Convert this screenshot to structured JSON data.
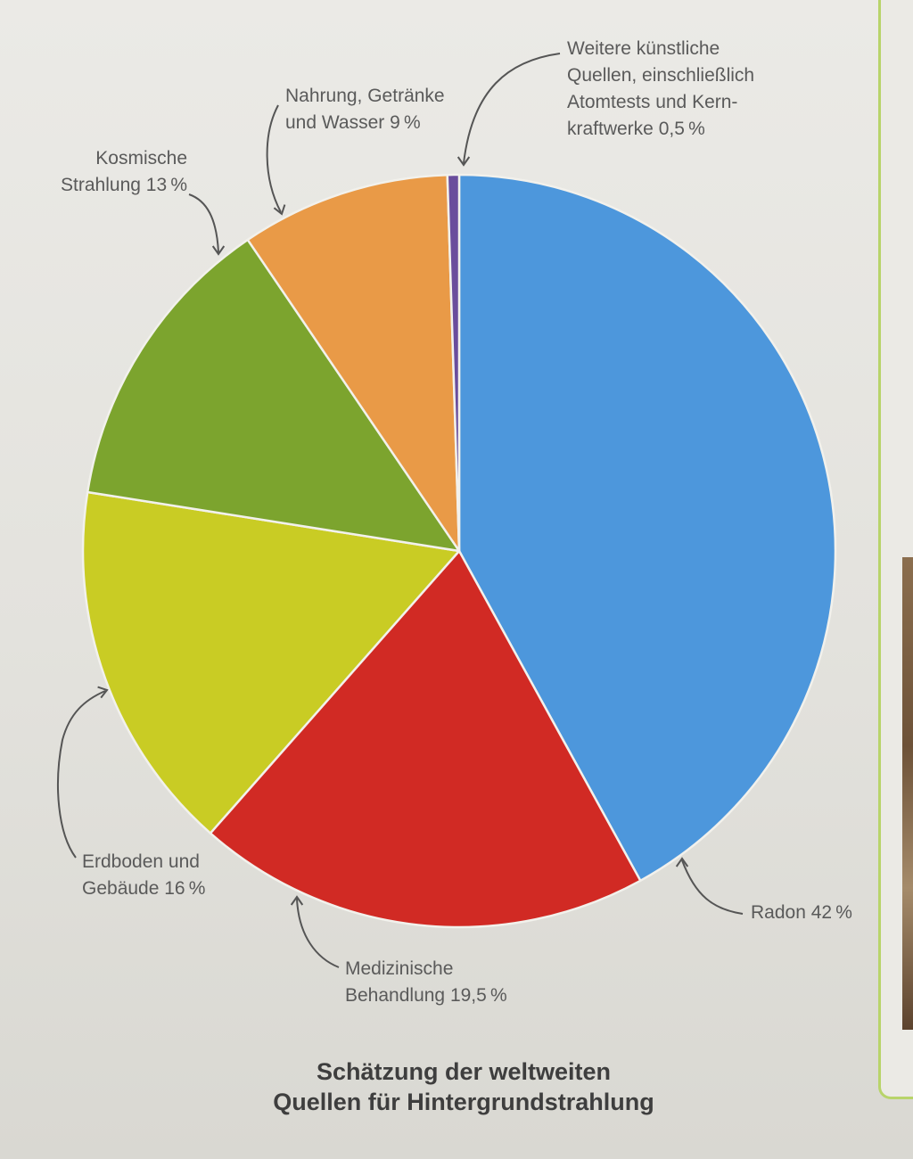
{
  "chart_data": {
    "type": "pie",
    "title_lines": [
      "Schätzung der weltweiten",
      "Quellen für Hintergrundstrahlung"
    ],
    "slices": [
      {
        "name": "Radon",
        "value": 42,
        "label_lines": [
          "Radon 42 %"
        ],
        "color": "#4d97dc"
      },
      {
        "name": "Medizinische Behandlung",
        "value": 19.5,
        "label_lines": [
          "Medizinische",
          "Behandlung 19,5 %"
        ],
        "color": "#d12a24"
      },
      {
        "name": "Erdboden und Gebäude",
        "value": 16,
        "label_lines": [
          "Erdboden und",
          "Gebäude 16 %"
        ],
        "color": "#c9cc24"
      },
      {
        "name": "Kosmische Strahlung",
        "value": 13,
        "label_lines": [
          "Kosmische",
          "Strahlung 13 %"
        ],
        "color": "#7ca42e"
      },
      {
        "name": "Nahrung, Getränke und Wasser",
        "value": 9,
        "label_lines": [
          "Nahrung, Getränke",
          "und Wasser 9 %"
        ],
        "color": "#e99a47"
      },
      {
        "name": "Weitere künstliche Quellen, einschließlich Atomtests und Kernkraftwerke",
        "value": 0.5,
        "label_lines": [
          "Weitere künstliche",
          "Quellen, einschließlich",
          "Atomtests und Kern-",
          "kraftwerke 0,5 %"
        ],
        "color": "#6a4d9c"
      }
    ]
  }
}
